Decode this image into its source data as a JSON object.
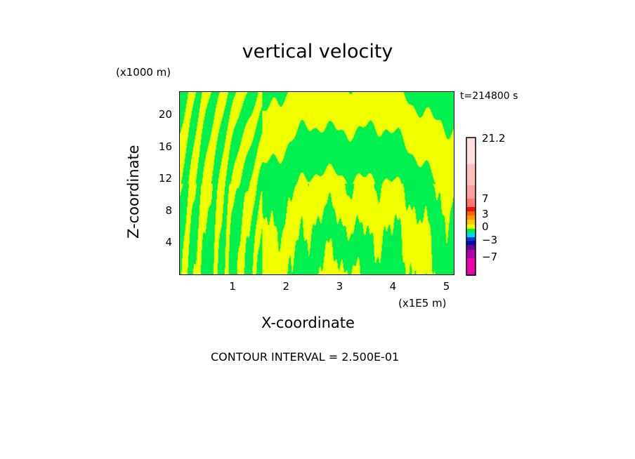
{
  "chart_data": {
    "type": "heatmap",
    "title": "vertical velocity",
    "xlabel": "X-coordinate",
    "ylabel": "Z-coordinate",
    "x_unit": "(x1E5 m)",
    "y_unit": "(x1000 m)",
    "time_label": "t=214800 s",
    "footer": "CONTOUR INTERVAL = 2.500E-01",
    "xlim": [
      0,
      5.15
    ],
    "ylim": [
      0,
      23
    ],
    "x_ticks": [
      "1",
      "2",
      "3",
      "4",
      "5"
    ],
    "x_tick_values": [
      1,
      2,
      3,
      4,
      5
    ],
    "y_ticks": [
      "4",
      "8",
      "12",
      "16",
      "20"
    ],
    "y_tick_values": [
      4,
      8,
      12,
      16,
      20
    ],
    "field_colors": {
      "positive_small": "#f0ff00",
      "negative_small": "#00f050"
    },
    "colorbar": {
      "labels": [
        "21.2",
        "7",
        "3",
        "0",
        "−3",
        "−7"
      ],
      "label_values": [
        21.2,
        7,
        3,
        0,
        -3,
        -7
      ],
      "levels": [
        {
          "from": -10,
          "to": -7,
          "color": "#e800a8"
        },
        {
          "from": -7,
          "to": -5.5,
          "color": "#b000a8"
        },
        {
          "from": -5.5,
          "to": -4.5,
          "color": "#6800a0"
        },
        {
          "from": -4.5,
          "to": -3.5,
          "color": "#0010a0"
        },
        {
          "from": -3.5,
          "to": -2.5,
          "color": "#0038f0"
        },
        {
          "from": -2.5,
          "to": -1.5,
          "color": "#00d8f0"
        },
        {
          "from": -1.5,
          "to": -0.5,
          "color": "#00f050"
        },
        {
          "from": -0.5,
          "to": 0.5,
          "color": "#f0ff00"
        },
        {
          "from": 0.5,
          "to": 1.5,
          "color": "#ffc800"
        },
        {
          "from": 1.5,
          "to": 2.5,
          "color": "#ff9800"
        },
        {
          "from": 2.5,
          "to": 3.5,
          "color": "#ff6000"
        },
        {
          "from": 3.5,
          "to": 4.5,
          "color": "#f01010"
        },
        {
          "from": 4.5,
          "to": 7,
          "color": "#ff7870"
        },
        {
          "from": 7,
          "to": 10.5,
          "color": "#ffa0a0"
        },
        {
          "from": 10.5,
          "to": 15,
          "color": "#ffc0c0"
        },
        {
          "from": 15,
          "to": 21.2,
          "color": "#ffe0e0"
        }
      ]
    }
  }
}
